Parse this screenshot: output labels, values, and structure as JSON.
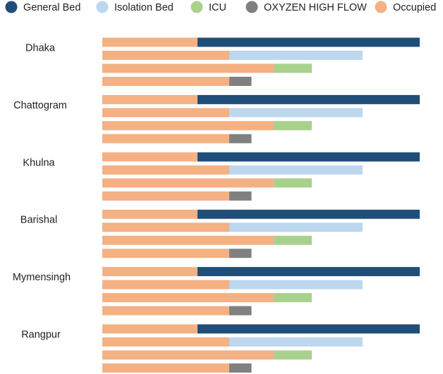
{
  "chart_data": {
    "type": "bar",
    "orientation": "horizontal",
    "stacked": true,
    "legend": {
      "placement": "top",
      "items": [
        {
          "key": "general",
          "label": "General Bed",
          "color": "#1f4e79"
        },
        {
          "key": "isolation",
          "label": "Isolation Bed",
          "color": "#bdd7ee"
        },
        {
          "key": "icu",
          "label": "ICU",
          "color": "#a9d18e"
        },
        {
          "key": "oxygen",
          "label": "OXYZEN HIGH FLOW",
          "color": "#808080"
        },
        {
          "key": "occupied",
          "label": "Occupied",
          "color": "#f4b183"
        }
      ]
    },
    "regions": [
      {
        "name": "Dhaka",
        "bars": [
          {
            "type": "general",
            "occupied": 30,
            "total": 100
          },
          {
            "type": "isolation",
            "occupied": 40,
            "total": 82
          },
          {
            "type": "icu",
            "occupied": 54,
            "total": 66
          },
          {
            "type": "oxygen",
            "occupied": 40,
            "total": 47
          }
        ]
      },
      {
        "name": "Chattogram",
        "bars": [
          {
            "type": "general",
            "occupied": 30,
            "total": 100
          },
          {
            "type": "isolation",
            "occupied": 40,
            "total": 82
          },
          {
            "type": "icu",
            "occupied": 54,
            "total": 66
          },
          {
            "type": "oxygen",
            "occupied": 40,
            "total": 47
          }
        ]
      },
      {
        "name": "Khulna",
        "bars": [
          {
            "type": "general",
            "occupied": 30,
            "total": 100
          },
          {
            "type": "isolation",
            "occupied": 40,
            "total": 82
          },
          {
            "type": "icu",
            "occupied": 54,
            "total": 66
          },
          {
            "type": "oxygen",
            "occupied": 40,
            "total": 47
          }
        ]
      },
      {
        "name": "Barishal",
        "bars": [
          {
            "type": "general",
            "occupied": 30,
            "total": 100
          },
          {
            "type": "isolation",
            "occupied": 40,
            "total": 82
          },
          {
            "type": "icu",
            "occupied": 54,
            "total": 66
          },
          {
            "type": "oxygen",
            "occupied": 40,
            "total": 47
          }
        ]
      },
      {
        "name": "Mymensingh",
        "bars": [
          {
            "type": "general",
            "occupied": 30,
            "total": 100
          },
          {
            "type": "isolation",
            "occupied": 40,
            "total": 82
          },
          {
            "type": "icu",
            "occupied": 54,
            "total": 66
          },
          {
            "type": "oxygen",
            "occupied": 40,
            "total": 47
          }
        ]
      },
      {
        "name": "Rangpur",
        "bars": [
          {
            "type": "general",
            "occupied": 30,
            "total": 100
          },
          {
            "type": "isolation",
            "occupied": 40,
            "total": 82
          },
          {
            "type": "icu",
            "occupied": 54,
            "total": 66
          },
          {
            "type": "oxygen",
            "occupied": 40,
            "total": 47
          }
        ]
      }
    ],
    "xlim": [
      0,
      100
    ],
    "grid": false
  }
}
